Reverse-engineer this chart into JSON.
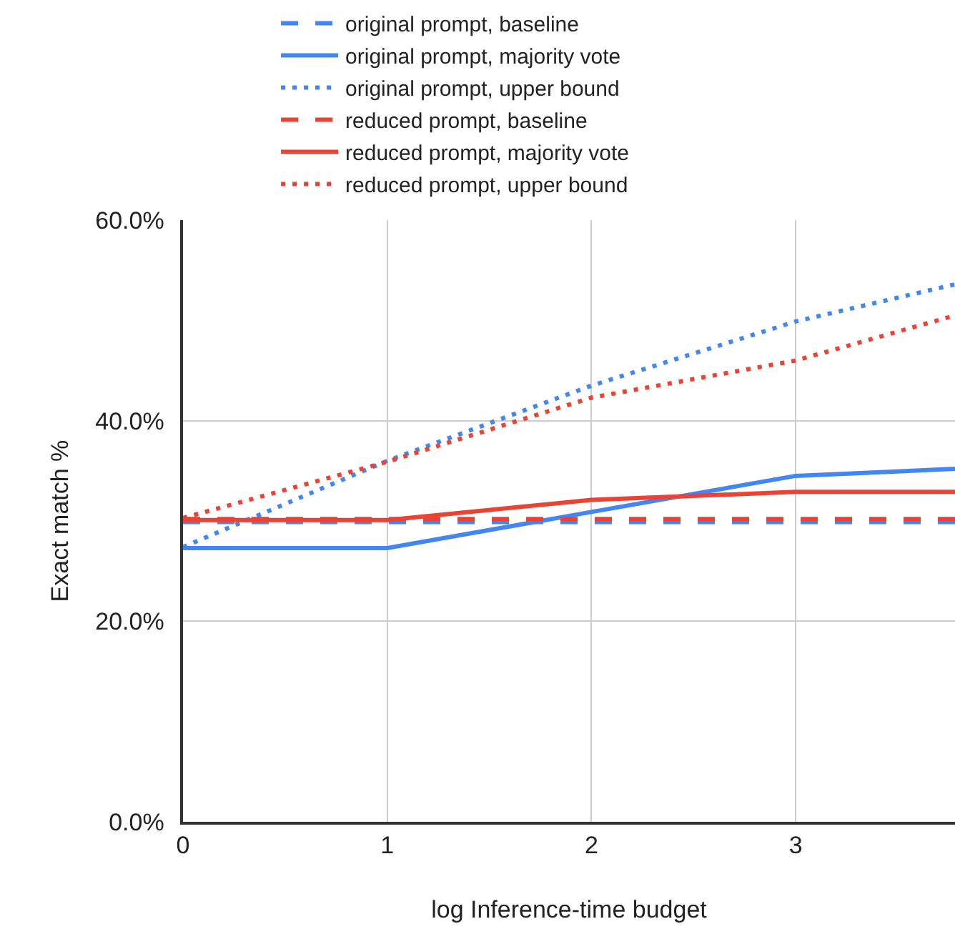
{
  "chart_data": {
    "type": "line",
    "xlabel": "log Inference-time budget",
    "ylabel": "Exact match %",
    "x": [
      0,
      1,
      2,
      3,
      3.78
    ],
    "xlim": [
      0,
      3.78
    ],
    "xticks": [
      0,
      1,
      2,
      3
    ],
    "ylim": [
      0,
      60
    ],
    "yticks": [
      {
        "value": 0,
        "label": "0.0%"
      },
      {
        "value": 20,
        "label": "20.0%"
      },
      {
        "value": 40,
        "label": "40.0%"
      },
      {
        "value": 60,
        "label": "60.0%"
      }
    ],
    "grid": true,
    "legend": "top",
    "marker": "none",
    "series": [
      {
        "name": "original prompt, baseline",
        "color": "#4285f4",
        "line_style": "dashed",
        "values": [
          29.9,
          29.9,
          29.9,
          29.9,
          29.9
        ]
      },
      {
        "name": "original prompt, majority vote",
        "color": "#4285f4",
        "line_style": "solid",
        "values": [
          27.3,
          27.3,
          30.9,
          34.5,
          35.2
        ]
      },
      {
        "name": "original prompt, upper bound",
        "color": "#4285f4",
        "line_style": "dotted",
        "values": [
          27.4,
          36.0,
          43.5,
          49.9,
          53.6
        ]
      },
      {
        "name": "reduced prompt, baseline",
        "color": "#ea4335",
        "line_style": "dashed",
        "values": [
          30.2,
          30.2,
          30.2,
          30.2,
          30.2
        ]
      },
      {
        "name": "reduced prompt, majority vote",
        "color": "#ea4335",
        "line_style": "solid",
        "values": [
          30.1,
          30.1,
          32.1,
          32.9,
          32.9
        ]
      },
      {
        "name": "reduced prompt, upper bound",
        "color": "#ea4335",
        "line_style": "dotted",
        "values": [
          30.3,
          35.9,
          42.3,
          46.0,
          50.5
        ]
      }
    ]
  }
}
